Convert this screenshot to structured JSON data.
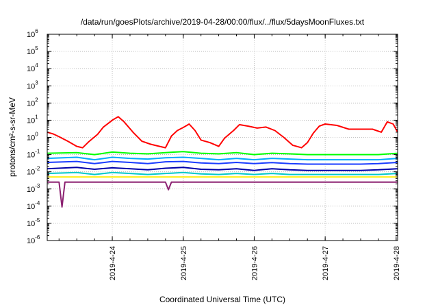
{
  "chart_data": {
    "type": "line",
    "title": "/data/run/goesPlots/archive/2019-04-28/00:00/flux/../flux/5daysMoonFluxes.txt",
    "xlabel": "Coordinated Universal Time (UTC)",
    "ylabel": "protons/cm²-s-sr-MeV",
    "yscale": "log",
    "ylim": [
      1e-06,
      1000000.0
    ],
    "xlim": [
      "2019-04-23 02:00",
      "2019-04-28 00:30"
    ],
    "grid": true,
    "legend": "none",
    "y_tick_labels": [
      {
        "base": "10",
        "exp": "-6"
      },
      {
        "base": "10",
        "exp": "-5"
      },
      {
        "base": "10",
        "exp": "-4"
      },
      {
        "base": "10",
        "exp": "-3"
      },
      {
        "base": "10",
        "exp": "-2"
      },
      {
        "base": "10",
        "exp": "-1"
      },
      {
        "base": "10",
        "exp": "0"
      },
      {
        "base": "10",
        "exp": "1"
      },
      {
        "base": "10",
        "exp": "2"
      },
      {
        "base": "10",
        "exp": "3"
      },
      {
        "base": "10",
        "exp": "4"
      },
      {
        "base": "10",
        "exp": "5"
      },
      {
        "base": "10",
        "exp": "6"
      }
    ],
    "x_tick_labels": [
      "2019-4-24",
      "2019-4-25",
      "2019-4-26",
      "2019-4-27",
      "2019-4-28"
    ],
    "x_tick_times": [
      "2019-04-24 00:00",
      "2019-04-25 00:00",
      "2019-04-26 00:00",
      "2019-04-27 00:00",
      "2019-04-28 00:00"
    ],
    "series": [
      {
        "color": "#ff0000",
        "x": [
          "2019-04-23 02:00",
          "2019-04-23 04:00",
          "2019-04-23 06:00",
          "2019-04-23 09:00",
          "2019-04-23 12:00",
          "2019-04-23 14:00",
          "2019-04-23 16:00",
          "2019-04-23 19:00",
          "2019-04-23 21:00",
          "2019-04-24 00:00",
          "2019-04-24 02:00",
          "2019-04-24 04:00",
          "2019-04-24 07:00",
          "2019-04-24 10:00",
          "2019-04-24 13:00",
          "2019-04-24 16:00",
          "2019-04-24 18:00",
          "2019-04-24 20:00",
          "2019-04-24 22:00",
          "2019-04-25 00:00",
          "2019-04-25 02:00",
          "2019-04-25 04:00",
          "2019-04-25 06:00",
          "2019-04-25 09:00",
          "2019-04-25 12:00",
          "2019-04-25 14:00",
          "2019-04-25 17:00",
          "2019-04-25 19:00",
          "2019-04-25 22:00",
          "2019-04-26 01:00",
          "2019-04-26 04:00",
          "2019-04-26 07:00",
          "2019-04-26 10:00",
          "2019-04-26 13:00",
          "2019-04-26 16:00",
          "2019-04-26 18:00",
          "2019-04-26 20:00",
          "2019-04-26 22:00",
          "2019-04-27 00:00",
          "2019-04-27 04:00",
          "2019-04-27 08:00",
          "2019-04-27 12:00",
          "2019-04-27 14:00",
          "2019-04-27 16:00",
          "2019-04-27 19:00",
          "2019-04-27 21:00",
          "2019-04-27 23:00",
          "2019-04-28 00:30"
        ],
        "y": [
          2.0,
          1.6,
          1.1,
          0.6,
          0.3,
          0.25,
          0.55,
          1.5,
          4.0,
          10.0,
          16.0,
          8.0,
          2.0,
          0.6,
          0.4,
          0.3,
          0.25,
          1.2,
          2.5,
          3.8,
          6.0,
          2.5,
          0.7,
          0.5,
          0.3,
          0.9,
          2.5,
          5.5,
          4.5,
          3.5,
          4.0,
          2.5,
          1.0,
          0.35,
          0.25,
          0.5,
          1.8,
          4.5,
          6.0,
          5.0,
          3.0,
          3.0,
          3.0,
          3.0,
          2.0,
          8.0,
          6.0,
          2.0
        ]
      },
      {
        "color": "#00ff00",
        "x": [
          "2019-04-23 02:00",
          "2019-04-23 12:00",
          "2019-04-23 18:00",
          "2019-04-24 00:00",
          "2019-04-24 06:00",
          "2019-04-24 12:00",
          "2019-04-24 18:00",
          "2019-04-25 00:00",
          "2019-04-25 06:00",
          "2019-04-25 12:00",
          "2019-04-25 18:00",
          "2019-04-26 00:00",
          "2019-04-26 06:00",
          "2019-04-26 12:00",
          "2019-04-26 18:00",
          "2019-04-27 00:00",
          "2019-04-27 12:00",
          "2019-04-27 18:00",
          "2019-04-28 00:30"
        ],
        "y": [
          0.12,
          0.13,
          0.1,
          0.14,
          0.12,
          0.11,
          0.13,
          0.15,
          0.12,
          0.11,
          0.13,
          0.1,
          0.12,
          0.11,
          0.1,
          0.1,
          0.1,
          0.1,
          0.12
        ]
      },
      {
        "color": "#00aaff",
        "x": [
          "2019-04-23 02:00",
          "2019-04-23 12:00",
          "2019-04-23 18:00",
          "2019-04-24 00:00",
          "2019-04-24 06:00",
          "2019-04-24 12:00",
          "2019-04-24 18:00",
          "2019-04-25 00:00",
          "2019-04-25 06:00",
          "2019-04-25 12:00",
          "2019-04-25 18:00",
          "2019-04-26 00:00",
          "2019-04-26 06:00",
          "2019-04-26 12:00",
          "2019-04-26 18:00",
          "2019-04-27 00:00",
          "2019-04-27 12:00",
          "2019-04-27 18:00",
          "2019-04-28 00:30"
        ],
        "y": [
          0.06,
          0.07,
          0.05,
          0.07,
          0.06,
          0.055,
          0.065,
          0.07,
          0.06,
          0.05,
          0.06,
          0.05,
          0.06,
          0.055,
          0.05,
          0.05,
          0.05,
          0.05,
          0.06
        ]
      },
      {
        "color": "#1a3cff",
        "x": [
          "2019-04-23 02:00",
          "2019-04-23 12:00",
          "2019-04-23 18:00",
          "2019-04-24 00:00",
          "2019-04-24 06:00",
          "2019-04-24 12:00",
          "2019-04-24 18:00",
          "2019-04-25 00:00",
          "2019-04-25 06:00",
          "2019-04-25 12:00",
          "2019-04-25 18:00",
          "2019-04-26 00:00",
          "2019-04-26 06:00",
          "2019-04-26 12:00",
          "2019-04-26 18:00",
          "2019-04-27 00:00",
          "2019-04-27 12:00",
          "2019-04-27 18:00",
          "2019-04-28 00:30"
        ],
        "y": [
          0.035,
          0.04,
          0.03,
          0.04,
          0.035,
          0.03,
          0.038,
          0.04,
          0.033,
          0.03,
          0.035,
          0.03,
          0.034,
          0.03,
          0.028,
          0.028,
          0.028,
          0.03,
          0.035
        ]
      },
      {
        "color": "#0000aa",
        "x": [
          "2019-04-23 02:00",
          "2019-04-23 12:00",
          "2019-04-23 18:00",
          "2019-04-24 00:00",
          "2019-04-24 06:00",
          "2019-04-24 12:00",
          "2019-04-24 18:00",
          "2019-04-25 00:00",
          "2019-04-25 06:00",
          "2019-04-25 12:00",
          "2019-04-25 18:00",
          "2019-04-26 00:00",
          "2019-04-26 06:00",
          "2019-04-26 12:00",
          "2019-04-26 18:00",
          "2019-04-27 00:00",
          "2019-04-27 12:00",
          "2019-04-27 18:00",
          "2019-04-28 00:30"
        ],
        "y": [
          0.015,
          0.018,
          0.014,
          0.017,
          0.015,
          0.013,
          0.016,
          0.018,
          0.014,
          0.013,
          0.015,
          0.012,
          0.015,
          0.013,
          0.012,
          0.012,
          0.012,
          0.013,
          0.015
        ]
      },
      {
        "color": "#00c8c8",
        "x": [
          "2019-04-23 02:00",
          "2019-04-23 12:00",
          "2019-04-23 18:00",
          "2019-04-24 00:00",
          "2019-04-24 06:00",
          "2019-04-24 12:00",
          "2019-04-24 18:00",
          "2019-04-25 00:00",
          "2019-04-25 06:00",
          "2019-04-25 12:00",
          "2019-04-25 18:00",
          "2019-04-26 00:00",
          "2019-04-26 06:00",
          "2019-04-26 12:00",
          "2019-04-26 18:00",
          "2019-04-27 00:00",
          "2019-04-27 12:00",
          "2019-04-27 18:00",
          "2019-04-28 00:30"
        ],
        "y": [
          0.008,
          0.009,
          0.007,
          0.009,
          0.008,
          0.007,
          0.008,
          0.009,
          0.0075,
          0.007,
          0.008,
          0.007,
          0.008,
          0.007,
          0.007,
          0.007,
          0.007,
          0.007,
          0.008
        ]
      },
      {
        "color": "#ffee00",
        "x": [
          "2019-04-23 02:00",
          "2019-04-23 12:00",
          "2019-04-24 00:00",
          "2019-04-24 12:00",
          "2019-04-25 00:00",
          "2019-04-25 12:00",
          "2019-04-26 00:00",
          "2019-04-26 12:00",
          "2019-04-27 00:00",
          "2019-04-27 12:00",
          "2019-04-28 00:30"
        ],
        "y": [
          0.005,
          0.005,
          0.005,
          0.005,
          0.005,
          0.005,
          0.005,
          0.005,
          0.005,
          0.005,
          0.005
        ]
      },
      {
        "color": "#8b2070",
        "x": [
          "2019-04-23 02:00",
          "2019-04-23 06:00",
          "2019-04-23 07:00",
          "2019-04-23 08:00",
          "2019-04-23 12:00",
          "2019-04-24 00:00",
          "2019-04-24 12:00",
          "2019-04-24 18:00",
          "2019-04-24 19:00",
          "2019-04-24 20:00",
          "2019-04-25 00:00",
          "2019-04-25 12:00",
          "2019-04-26 00:00",
          "2019-04-26 12:00",
          "2019-04-27 00:00",
          "2019-04-27 12:00",
          "2019-04-28 00:30"
        ],
        "y": [
          0.0025,
          0.0025,
          9e-05,
          0.0025,
          0.0025,
          0.0025,
          0.0025,
          0.0025,
          0.0009,
          0.0025,
          0.0025,
          0.0025,
          0.0025,
          0.0025,
          0.0025,
          0.0025,
          0.0025
        ]
      }
    ]
  }
}
